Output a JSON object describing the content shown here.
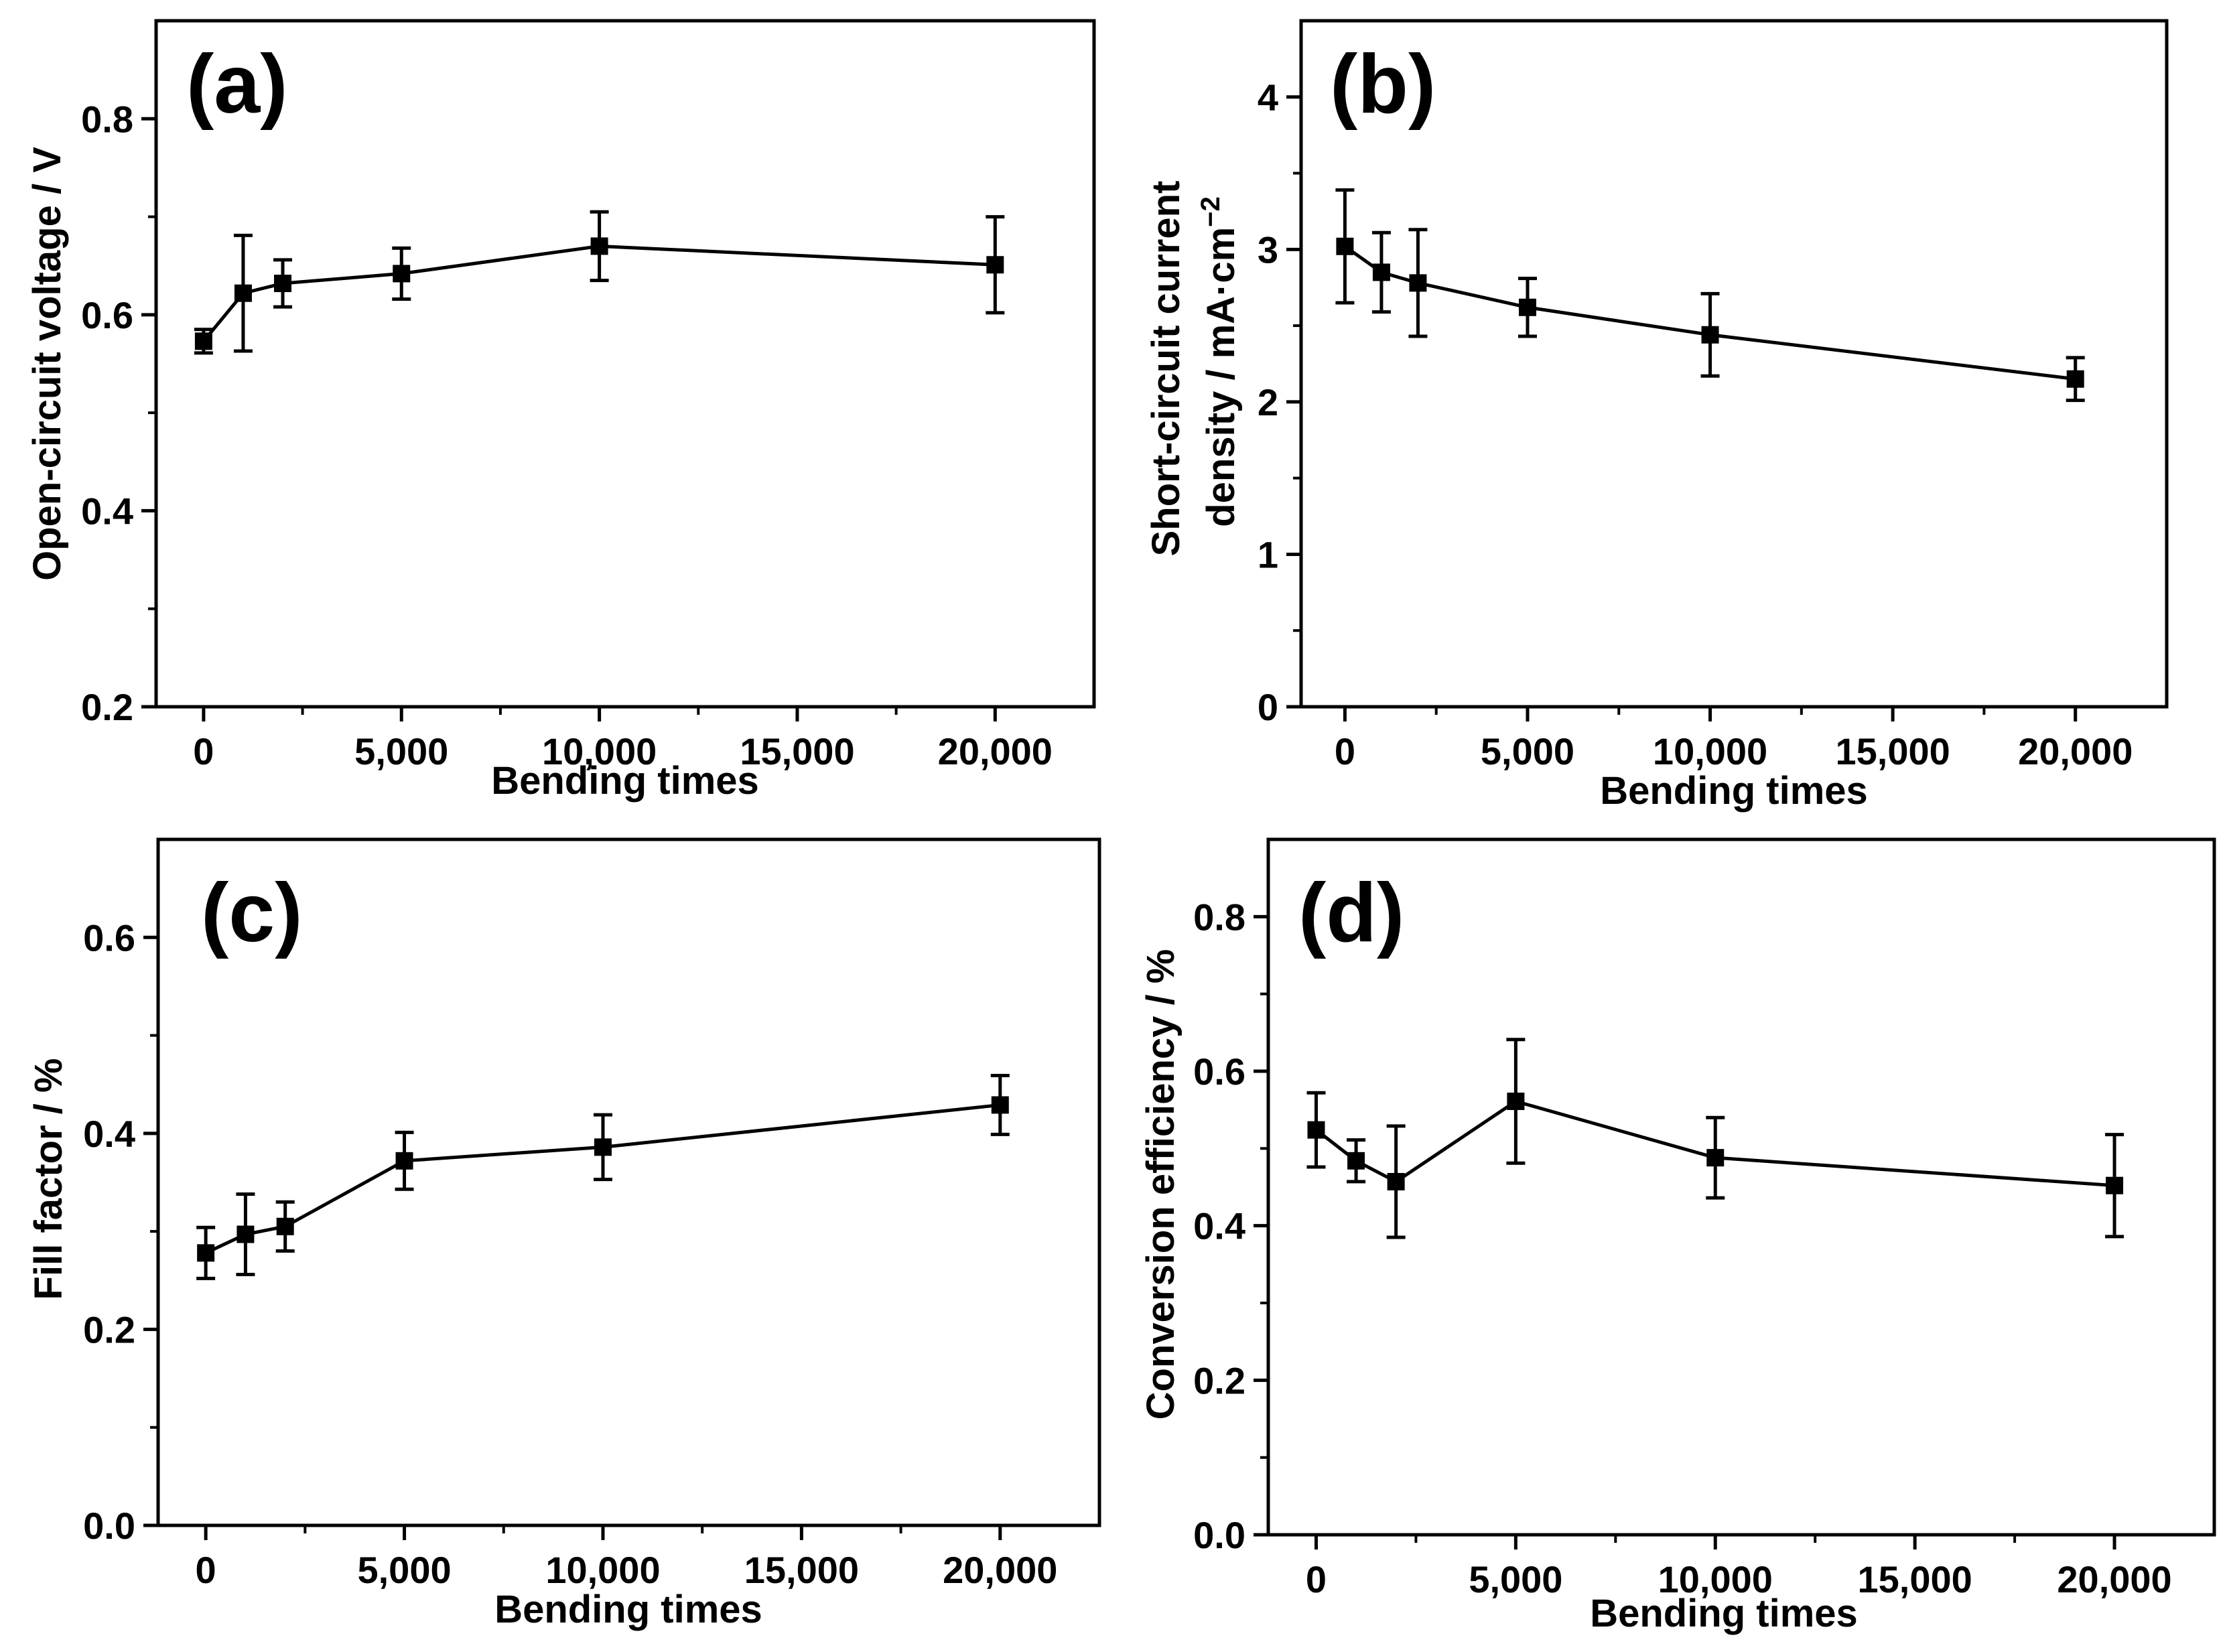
{
  "chart_data": [
    {
      "type": "line",
      "panel_label": "(a)",
      "xlabel": "Bending times",
      "ylabel": "Open-circuit voltage / V",
      "xlim": [
        -1200,
        22500
      ],
      "ylim": [
        0.2,
        0.9
      ],
      "x_ticks": [
        0,
        5000,
        10000,
        15000,
        20000
      ],
      "x_tick_labels": [
        "0",
        "5,000",
        "10,000",
        "15,000",
        "20,000"
      ],
      "y_ticks": [
        0.2,
        0.4,
        0.6,
        0.8
      ],
      "y_tick_labels": [
        "0.2",
        "0.4",
        "0.6",
        "0.8"
      ],
      "y_minor_ticks": [
        0.3,
        0.5,
        0.7
      ],
      "grid": false,
      "series": [
        {
          "name": "Open-circuit voltage",
          "x": [
            0,
            1000,
            2000,
            5000,
            10000,
            20000
          ],
          "y": [
            0.573,
            0.622,
            0.632,
            0.642,
            0.67,
            0.651
          ],
          "err": [
            0.012,
            0.059,
            0.024,
            0.026,
            0.035,
            0.049
          ]
        }
      ]
    },
    {
      "type": "line",
      "panel_label": "(b)",
      "xlabel": "Bending times",
      "ylabel": "Short-circuit current density / mA·cm",
      "ylabel_line1": "Short-circuit current",
      "ylabel_line2": "density / mA·cm",
      "ylabel_sup": "−2",
      "xlim": [
        -1200,
        22500
      ],
      "ylim": [
        0,
        4.5
      ],
      "x_ticks": [
        0,
        5000,
        10000,
        15000,
        20000
      ],
      "x_tick_labels": [
        "0",
        "5,000",
        "10,000",
        "15,000",
        "20,000"
      ],
      "y_ticks": [
        0,
        1,
        2,
        3,
        4
      ],
      "y_tick_labels": [
        "0",
        "1",
        "2",
        "3",
        "4"
      ],
      "y_minor_ticks": [
        0.5,
        1.5,
        2.5,
        3.5
      ],
      "grid": false,
      "series": [
        {
          "name": "Short-circuit current density",
          "x": [
            0,
            1000,
            2000,
            5000,
            10000,
            20000
          ],
          "y": [
            3.02,
            2.85,
            2.78,
            2.62,
            2.44,
            2.15
          ],
          "err": [
            0.37,
            0.26,
            0.35,
            0.19,
            0.27,
            0.14
          ]
        }
      ]
    },
    {
      "type": "line",
      "panel_label": "(c)",
      "xlabel": "Bending times",
      "ylabel": "Fill factor / %",
      "xlim": [
        -1200,
        22500
      ],
      "ylim": [
        0,
        0.7
      ],
      "x_ticks": [
        0,
        5000,
        10000,
        15000,
        20000
      ],
      "x_tick_labels": [
        "0",
        "5,000",
        "10,000",
        "15,000",
        "20,000"
      ],
      "y_ticks": [
        0,
        0.2,
        0.4,
        0.6
      ],
      "y_tick_labels": [
        "0.0",
        "0.2",
        "0.4",
        "0.6"
      ],
      "y_minor_ticks": [
        0.1,
        0.3,
        0.5
      ],
      "grid": false,
      "series": [
        {
          "name": "Fill factor",
          "x": [
            0,
            1000,
            2000,
            5000,
            10000,
            20000
          ],
          "y": [
            0.278,
            0.297,
            0.305,
            0.372,
            0.386,
            0.429
          ],
          "err": [
            0.026,
            0.041,
            0.025,
            0.029,
            0.033,
            0.03
          ]
        }
      ]
    },
    {
      "type": "line",
      "panel_label": "(d)",
      "xlabel": "Bending times",
      "ylabel": "Conversion efficiency / %",
      "xlim": [
        -1200,
        22500
      ],
      "ylim": [
        0,
        0.9
      ],
      "x_ticks": [
        0,
        5000,
        10000,
        15000,
        20000
      ],
      "x_tick_labels": [
        "0",
        "5,000",
        "10,000",
        "15,000",
        "20,000"
      ],
      "y_ticks": [
        0,
        0.2,
        0.4,
        0.6,
        0.8
      ],
      "y_tick_labels": [
        "0.0",
        "0.2",
        "0.4",
        "0.6",
        "0.8"
      ],
      "y_minor_ticks": [
        0.1,
        0.3,
        0.5,
        0.7
      ],
      "grid": false,
      "series": [
        {
          "name": "Conversion efficiency",
          "x": [
            0,
            1000,
            2000,
            5000,
            10000,
            20000
          ],
          "y": [
            0.524,
            0.484,
            0.457,
            0.561,
            0.488,
            0.452
          ],
          "err": [
            0.048,
            0.027,
            0.072,
            0.08,
            0.052,
            0.066
          ]
        }
      ]
    }
  ]
}
